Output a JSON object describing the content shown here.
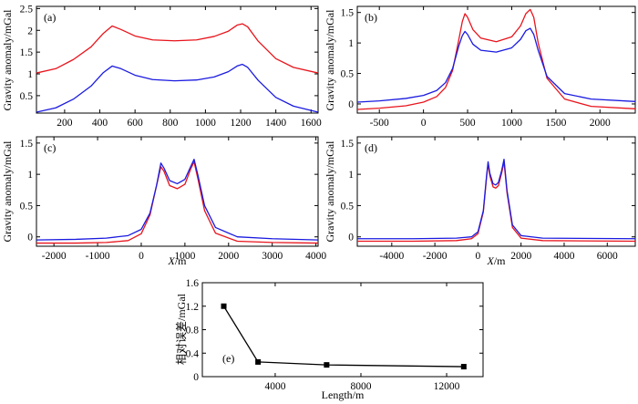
{
  "chart_data": [
    {
      "id": "a",
      "type": "line",
      "label": "(a)",
      "ylabel": "Gravity anomaly/mGal",
      "xlabel": "",
      "xlim": [
        40,
        1640
      ],
      "ylim": [
        0.1,
        2.55
      ],
      "xticks": [
        200,
        400,
        600,
        800,
        1000,
        1200,
        1400,
        1600
      ],
      "yticks": [
        0.5,
        1,
        1.5,
        2,
        2.5
      ],
      "xtick_labels": [
        "200",
        "400",
        "600",
        "800",
        "1000",
        "1200",
        "1400",
        "1600"
      ],
      "ytick_labels": [
        "0.5",
        "1",
        "1.5",
        "2",
        "2.5"
      ],
      "series": [
        {
          "name": "red",
          "color": "#e8141c",
          "x": [
            40,
            150,
            250,
            350,
            420,
            470,
            520,
            600,
            700,
            825,
            950,
            1050,
            1130,
            1180,
            1210,
            1240,
            1300,
            1400,
            1500,
            1640
          ],
          "y": [
            1.02,
            1.12,
            1.33,
            1.62,
            1.93,
            2.1,
            2.02,
            1.87,
            1.78,
            1.76,
            1.78,
            1.86,
            1.98,
            2.12,
            2.15,
            2.08,
            1.75,
            1.35,
            1.15,
            1.02
          ]
        },
        {
          "name": "blue",
          "color": "#1a1ae0",
          "x": [
            40,
            150,
            250,
            350,
            420,
            470,
            520,
            600,
            700,
            825,
            950,
            1050,
            1130,
            1180,
            1210,
            1240,
            1300,
            1400,
            1500,
            1640
          ],
          "y": [
            0.12,
            0.22,
            0.42,
            0.72,
            1.03,
            1.18,
            1.12,
            0.97,
            0.87,
            0.84,
            0.86,
            0.93,
            1.05,
            1.18,
            1.22,
            1.15,
            0.85,
            0.46,
            0.26,
            0.12
          ]
        }
      ]
    },
    {
      "id": "b",
      "type": "line",
      "label": "(b)",
      "ylabel": "Gravity anomaly/mGal",
      "xlabel": "",
      "xlim": [
        -750,
        2400
      ],
      "ylim": [
        -0.15,
        1.6
      ],
      "xticks": [
        -500,
        0,
        500,
        1000,
        1500,
        2000
      ],
      "yticks": [
        0,
        0.5,
        1,
        1.5
      ],
      "xtick_labels": [
        "-500",
        "0",
        "500",
        "1000",
        "1500",
        "2000"
      ],
      "ytick_labels": [
        "0",
        "0.5",
        "1",
        "1.5"
      ],
      "series": [
        {
          "name": "red",
          "color": "#e8141c",
          "x": [
            -750,
            -500,
            -200,
            0,
            150,
            250,
            330,
            400,
            440,
            470,
            500,
            560,
            650,
            825,
            1000,
            1100,
            1160,
            1210,
            1250,
            1300,
            1400,
            1600,
            1900,
            2400
          ],
          "y": [
            -0.09,
            -0.07,
            -0.03,
            0.03,
            0.12,
            0.27,
            0.55,
            1.05,
            1.35,
            1.48,
            1.42,
            1.22,
            1.08,
            1.02,
            1.1,
            1.28,
            1.48,
            1.55,
            1.42,
            1.0,
            0.42,
            0.08,
            -0.04,
            -0.08
          ]
        },
        {
          "name": "blue",
          "color": "#1a1ae0",
          "x": [
            -750,
            -500,
            -200,
            0,
            150,
            250,
            330,
            400,
            440,
            470,
            500,
            560,
            650,
            825,
            1000,
            1100,
            1160,
            1210,
            1250,
            1300,
            1400,
            1600,
            1900,
            2400
          ],
          "y": [
            0.03,
            0.05,
            0.09,
            0.14,
            0.22,
            0.35,
            0.58,
            0.95,
            1.12,
            1.19,
            1.14,
            0.98,
            0.88,
            0.85,
            0.92,
            1.06,
            1.2,
            1.24,
            1.14,
            0.88,
            0.45,
            0.17,
            0.08,
            0.04
          ]
        }
      ]
    },
    {
      "id": "c",
      "type": "line",
      "label": "(c)",
      "ylabel": "Gravity anomaly/mGal",
      "xlabel": "X/m",
      "xlim": [
        -2400,
        4050
      ],
      "ylim": [
        -0.15,
        1.6
      ],
      "xticks": [
        -2000,
        -1000,
        0,
        1000,
        2000,
        3000,
        4000
      ],
      "yticks": [
        0,
        0.5,
        1,
        1.5
      ],
      "xtick_labels": [
        "-2000",
        "-1000",
        "0",
        "1000",
        "2000",
        "3000",
        "4000"
      ],
      "ytick_labels": [
        "0",
        "0.5",
        "1",
        "1.5"
      ],
      "series": [
        {
          "name": "red",
          "color": "#e8141c",
          "x": [
            -2400,
            -1500,
            -800,
            -300,
            0,
            200,
            350,
            450,
            520,
            650,
            825,
            1000,
            1130,
            1210,
            1300,
            1450,
            1700,
            2200,
            3000,
            4050
          ],
          "y": [
            -0.1,
            -0.1,
            -0.09,
            -0.06,
            0.05,
            0.35,
            0.82,
            1.12,
            1.05,
            0.82,
            0.77,
            0.84,
            1.08,
            1.2,
            0.92,
            0.42,
            0.06,
            -0.07,
            -0.09,
            -0.1
          ]
        },
        {
          "name": "blue",
          "color": "#1a1ae0",
          "x": [
            -2400,
            -1500,
            -800,
            -300,
            0,
            200,
            350,
            450,
            520,
            650,
            825,
            1000,
            1130,
            1210,
            1300,
            1450,
            1700,
            2200,
            3000,
            4050
          ],
          "y": [
            -0.05,
            -0.04,
            -0.02,
            0.02,
            0.12,
            0.38,
            0.82,
            1.18,
            1.1,
            0.9,
            0.85,
            0.92,
            1.12,
            1.24,
            0.98,
            0.5,
            0.15,
            0.0,
            -0.03,
            -0.05
          ]
        }
      ]
    },
    {
      "id": "d",
      "type": "line",
      "label": "(d)",
      "ylabel": "Gravity anomaly/mGal",
      "xlabel": "X/m",
      "xlim": [
        -5600,
        7300
      ],
      "ylim": [
        -0.15,
        1.6
      ],
      "xticks": [
        -4000,
        -2000,
        0,
        2000,
        4000,
        6000
      ],
      "yticks": [
        0,
        0.5,
        1,
        1.5
      ],
      "xtick_labels": [
        "-4000",
        "-2000",
        "0",
        "2000",
        "4000",
        "6000"
      ],
      "ytick_labels": [
        "0",
        "0.5",
        "1",
        "1.5"
      ],
      "series": [
        {
          "name": "red",
          "color": "#e8141c",
          "x": [
            -5600,
            -3000,
            -1000,
            -300,
            0,
            250,
            400,
            470,
            550,
            700,
            825,
            950,
            1100,
            1210,
            1350,
            1600,
            2000,
            3000,
            7300
          ],
          "y": [
            -0.07,
            -0.07,
            -0.06,
            -0.03,
            0.05,
            0.4,
            0.95,
            1.17,
            0.98,
            0.8,
            0.78,
            0.82,
            1.02,
            1.2,
            0.7,
            0.15,
            -0.02,
            -0.06,
            -0.07
          ]
        },
        {
          "name": "blue",
          "color": "#1a1ae0",
          "x": [
            -5600,
            -3000,
            -1000,
            -300,
            0,
            250,
            400,
            470,
            550,
            700,
            825,
            950,
            1100,
            1210,
            1350,
            1600,
            2000,
            3000,
            7300
          ],
          "y": [
            -0.03,
            -0.03,
            -0.02,
            0.0,
            0.08,
            0.42,
            0.98,
            1.2,
            1.02,
            0.85,
            0.83,
            0.87,
            1.06,
            1.24,
            0.74,
            0.19,
            0.02,
            -0.02,
            -0.03
          ]
        }
      ]
    },
    {
      "id": "e",
      "type": "line",
      "label": "(e)",
      "ylabel": "相对误差/mGal",
      "xlabel": "Length/m",
      "xlim": [
        600,
        13700
      ],
      "ylim": [
        0,
        1.6
      ],
      "xticks": [
        4000,
        8000,
        12000
      ],
      "yticks": [
        0,
        0.4,
        0.8,
        1.2,
        1.6
      ],
      "xtick_labels": [
        "4000",
        "8000",
        "12000"
      ],
      "ytick_labels": [
        "0",
        "0.4",
        "0.8",
        "1.2",
        "1.6"
      ],
      "series": [
        {
          "name": "relative-error",
          "color": "#000000",
          "marker": "square",
          "x": [
            1600,
            3200,
            6400,
            12800
          ],
          "y": [
            1.2,
            0.25,
            0.2,
            0.17
          ]
        }
      ]
    }
  ]
}
